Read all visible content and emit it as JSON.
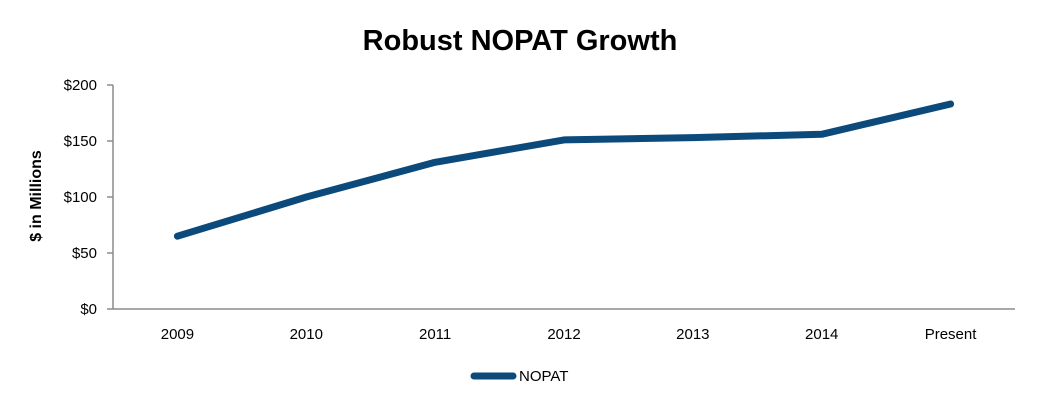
{
  "chart_data": {
    "type": "line",
    "title": "Robust NOPAT Growth",
    "xlabel": "",
    "ylabel": "$ in Millions",
    "categories": [
      "2009",
      "2010",
      "2011",
      "2012",
      "2013",
      "2014",
      "Present"
    ],
    "series": [
      {
        "name": "NOPAT",
        "values": [
          65,
          100,
          131,
          151,
          153,
          156,
          183
        ],
        "color": "#0b4a7a"
      }
    ],
    "ylim": [
      0,
      200
    ],
    "yticks": [
      0,
      50,
      100,
      150,
      200
    ],
    "ytick_labels": [
      "$0",
      "$50",
      "$100",
      "$150",
      "$200"
    ],
    "grid": false,
    "legend_position": "bottom"
  }
}
